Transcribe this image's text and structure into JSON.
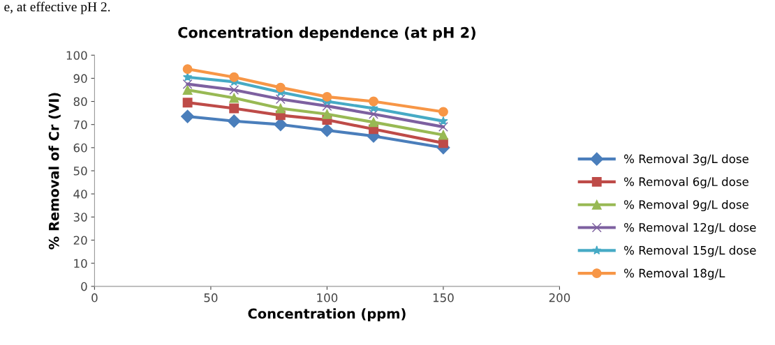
{
  "chart_data": {
    "type": "line",
    "title": "Concentration dependence (at pH 2)",
    "xlabel": "Concentration (ppm)",
    "ylabel": "% Removal of Cr (VI)",
    "annotations": [
      "e, at effective pH 2."
    ],
    "x": [
      40,
      60,
      80,
      100,
      120,
      150
    ],
    "series": [
      {
        "name": "% Removal 3g/L dose",
        "color": "#4a7ebb",
        "marker": "diamond",
        "values": [
          73.5,
          71.5,
          70,
          67.5,
          65,
          60
        ]
      },
      {
        "name": "% Removal 6g/L dose",
        "color": "#be4b48",
        "marker": "square",
        "values": [
          79.5,
          77,
          74,
          72,
          68,
          62
        ]
      },
      {
        "name": "% Removal 9g/L dose",
        "color": "#98b954",
        "marker": "triangle",
        "values": [
          85,
          81.5,
          77,
          74.5,
          71,
          65.5
        ]
      },
      {
        "name": "% Removal 12g/L dose",
        "color": "#7d60a0",
        "marker": "cross",
        "values": [
          87.5,
          85,
          81,
          78,
          74.5,
          69
        ]
      },
      {
        "name": "% Removal 15g/L dose",
        "color": "#46aac5",
        "marker": "star",
        "values": [
          90.5,
          88.5,
          84,
          80,
          77,
          71.5
        ]
      },
      {
        "name": "% Removal 18g/L",
        "color": "#f79646",
        "marker": "circle",
        "values": [
          94,
          90.5,
          86,
          82,
          80,
          75.5
        ]
      }
    ],
    "xlim": [
      0,
      200
    ],
    "xticks": [
      0,
      50,
      100,
      150,
      200
    ],
    "ylim": [
      0,
      100
    ],
    "yticks": [
      0,
      10,
      20,
      30,
      40,
      50,
      60,
      70,
      80,
      90,
      100
    ],
    "grid": false,
    "legend": "right",
    "line_style": "solid"
  }
}
